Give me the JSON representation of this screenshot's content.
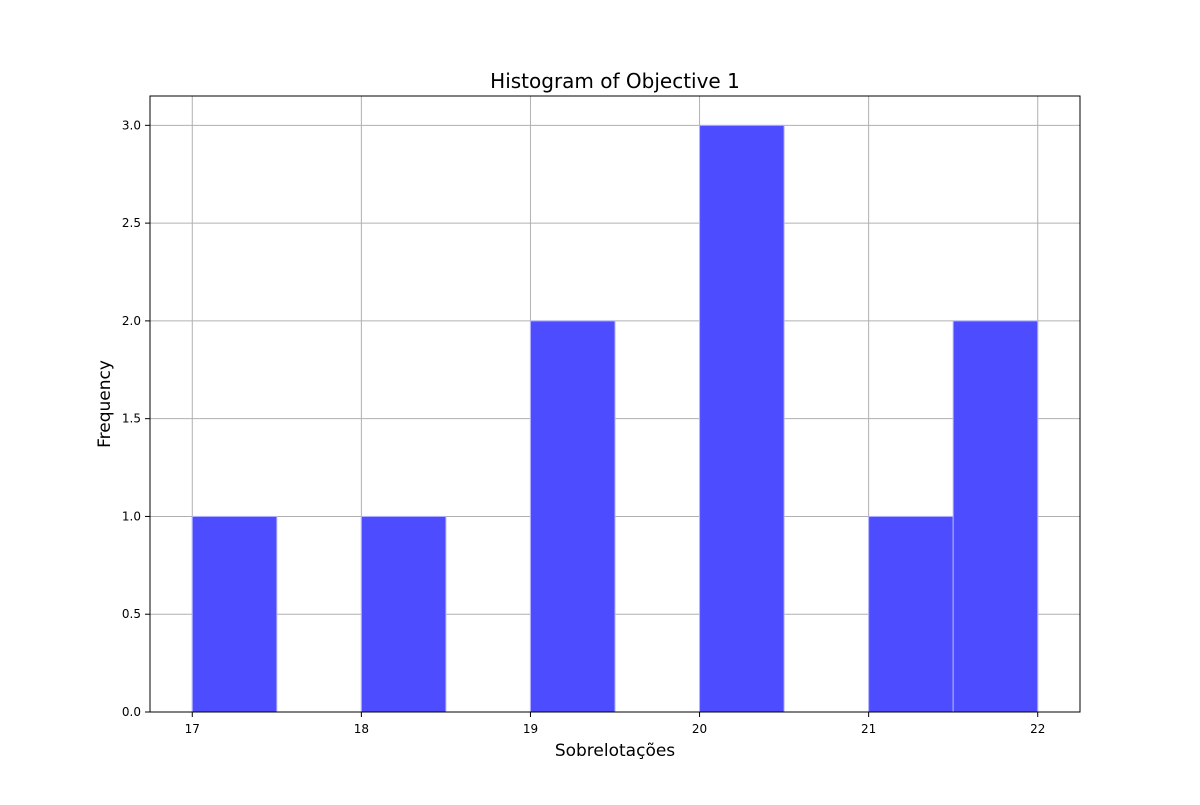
{
  "chart_data": {
    "type": "bar",
    "title": "Histogram of Objective 1",
    "xlabel": "Sobrelotações",
    "ylabel": "Frequency",
    "bins": [
      {
        "start": 17.0,
        "end": 17.5,
        "count": 1
      },
      {
        "start": 17.5,
        "end": 18.0,
        "count": 0
      },
      {
        "start": 18.0,
        "end": 18.5,
        "count": 1
      },
      {
        "start": 18.5,
        "end": 19.0,
        "count": 0
      },
      {
        "start": 19.0,
        "end": 19.5,
        "count": 2
      },
      {
        "start": 19.5,
        "end": 20.0,
        "count": 0
      },
      {
        "start": 20.0,
        "end": 20.5,
        "count": 3
      },
      {
        "start": 20.5,
        "end": 21.0,
        "count": 0
      },
      {
        "start": 21.0,
        "end": 21.5,
        "count": 1
      },
      {
        "start": 21.5,
        "end": 22.0,
        "count": 2
      }
    ],
    "xlim": [
      16.75,
      22.25
    ],
    "ylim": [
      0,
      3.15
    ],
    "xticks": [
      17,
      18,
      19,
      20,
      21,
      22
    ],
    "xtick_labels": [
      "17",
      "18",
      "19",
      "20",
      "21",
      "22"
    ],
    "yticks": [
      0,
      0.5,
      1.0,
      1.5,
      2.0,
      2.5,
      3.0
    ],
    "ytick_labels": [
      "0.0",
      "0.5",
      "1.0",
      "1.5",
      "2.0",
      "2.5",
      "3.0"
    ],
    "grid": true,
    "bar_color": "#4d4dff",
    "bar_edge_color": "#b3b3ff"
  }
}
